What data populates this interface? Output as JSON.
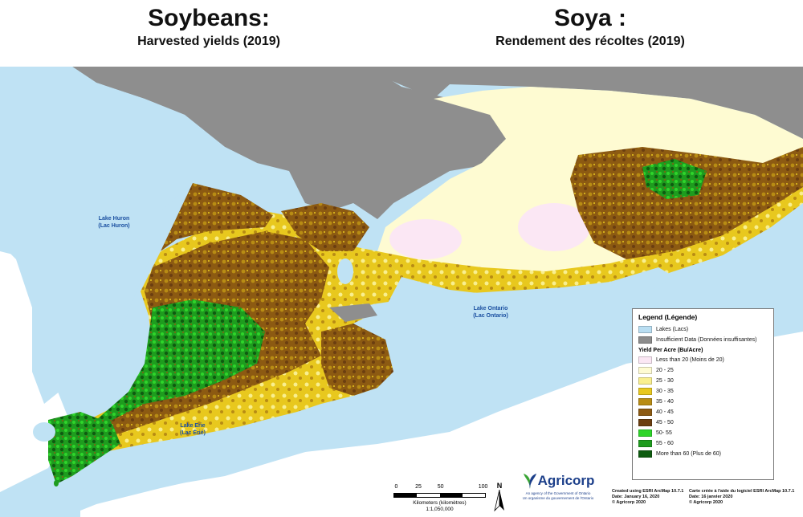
{
  "title_en": {
    "main": "Soybeans:",
    "sub": "Harvested yields (2019)"
  },
  "title_fr": {
    "main": "Soya :",
    "sub": "Rendement des récoltes (2019)"
  },
  "lakes": [
    {
      "line1": "Lake Huron",
      "line2": "(Lac Huron)"
    },
    {
      "line1": "Lake Ontario",
      "line2": "(Lac Ontario)"
    },
    {
      "line1": "Lake Erie",
      "line2": "(Lac Érié)"
    }
  ],
  "legend": {
    "title": "Legend (Légende)",
    "general": [
      {
        "label": "Lakes (Lacs)",
        "color": "#b9def2"
      },
      {
        "label": "Insufficient Data (Données insuffisantes)",
        "color": "#8c8c8c"
      }
    ],
    "yield_heading": "Yield Per Acre (Bu/Acre)",
    "classes": [
      {
        "label": "Less than 20 (Moins de 20)",
        "color": "#fbe7f4"
      },
      {
        "label": "20 - 25",
        "color": "#fefbd2"
      },
      {
        "label": "25 - 30",
        "color": "#f9ef8f"
      },
      {
        "label": "30 - 35",
        "color": "#e8c81e"
      },
      {
        "label": "35 - 40",
        "color": "#b88c14"
      },
      {
        "label": "40 - 45",
        "color": "#8c5a12"
      },
      {
        "label": "45 - 50",
        "color": "#6b3e10"
      },
      {
        "label": "50- 55",
        "color": "#2ed52a"
      },
      {
        "label": "55 - 60",
        "color": "#1e9c1e"
      },
      {
        "label": "More than 60 (Plus de 60)",
        "color": "#0e5c10"
      }
    ]
  },
  "scale": {
    "ticks": [
      "0",
      "25",
      "50",
      "100"
    ],
    "units": "Kilometers (kilomètres)",
    "ratio": "1:1,050,000"
  },
  "north_label": "N",
  "agricorp": {
    "name": "Agricorp",
    "tagline_en": "An agency of the Government of Ontario",
    "tagline_fr": "Un organisme du gouvernement de l'Ontario"
  },
  "credits": {
    "en": [
      "Created using ESRI ArcMap 10.7.1",
      "Date: January 16, 2020",
      "© Agricorp 2020"
    ],
    "fr": [
      "Carte créée à l'aide du logiciel ESRI ArcMap 10.7.1",
      "Date: 16 janvier 2020",
      "© Agricorp 2020"
    ]
  },
  "colors": {
    "water": "#bfe2f4",
    "land_outside": "#8e8e8e",
    "usa_land": "#ffffff"
  }
}
